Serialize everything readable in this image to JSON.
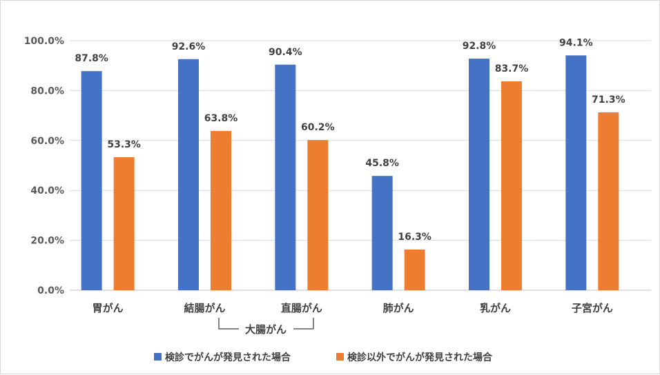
{
  "chart_data": {
    "type": "bar",
    "categories": [
      "胃がん",
      "結腸がん",
      "直腸がん",
      "肺がん",
      "乳がん",
      "子宮がん"
    ],
    "series": [
      {
        "name": "検診でがんが発見された場合",
        "values": [
          87.8,
          92.6,
          90.4,
          45.8,
          92.8,
          94.1
        ],
        "color": "#4472C4"
      },
      {
        "name": "検診以外でがんが発見された場合",
        "values": [
          53.3,
          63.8,
          60.2,
          16.3,
          83.7,
          71.3
        ],
        "color": "#ED7D31"
      }
    ],
    "data_labels": [
      [
        "87.8%",
        "92.6%",
        "90.4%",
        "45.8%",
        "92.8%",
        "94.1%"
      ],
      [
        "53.3%",
        "63.8%",
        "60.2%",
        "16.3%",
        "83.7%",
        "71.3%"
      ]
    ],
    "y_ticks": [
      "0.0%",
      "20.0%",
      "40.0%",
      "60.0%",
      "80.0%",
      "100.0%"
    ],
    "ylim": [
      0,
      100
    ],
    "grid": true,
    "legend_position": "bottom",
    "annotation": {
      "text": "大腸がん",
      "spans": [
        "結腸がん",
        "直腸がん"
      ]
    }
  }
}
